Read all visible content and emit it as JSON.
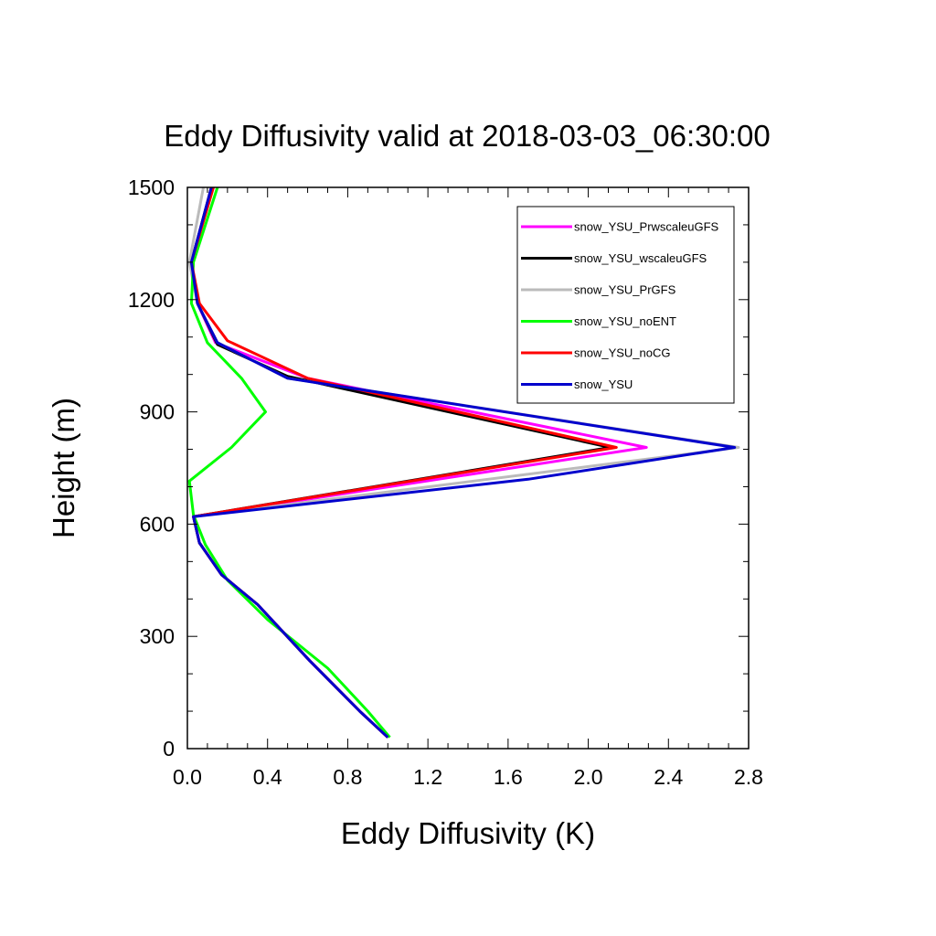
{
  "chart_data": {
    "type": "line",
    "title": "Eddy Diffusivity valid at 2018-03-03_06:30:00",
    "xlabel": "Eddy Diffusivity (K)",
    "ylabel": "Height (m)",
    "xlim": [
      0.0,
      2.8
    ],
    "ylim": [
      0,
      1500
    ],
    "xticks": [
      "0.0",
      "0.4",
      "0.8",
      "1.2",
      "1.6",
      "2.0",
      "2.4",
      "2.8"
    ],
    "yticks": [
      "0",
      "300",
      "600",
      "900",
      "1200",
      "1500"
    ],
    "legend_position": "top-right",
    "grid": false,
    "series": [
      {
        "name": "snow_YSU_PrwscaleuGFS",
        "color": "#ff00ff",
        "points": [
          [
            1.0,
            30
          ],
          [
            0.86,
            100
          ],
          [
            0.61,
            235
          ],
          [
            0.35,
            385
          ],
          [
            0.17,
            465
          ],
          [
            0.06,
            550
          ],
          [
            0.03,
            620
          ],
          [
            2.29,
            805
          ],
          [
            0.6,
            990
          ],
          [
            0.14,
            1085
          ],
          [
            0.05,
            1190
          ],
          [
            0.02,
            1300
          ],
          [
            0.12,
            1500
          ]
        ]
      },
      {
        "name": "snow_YSU_wscaleuGFS",
        "color": "#000000",
        "points": [
          [
            1.0,
            30
          ],
          [
            0.86,
            100
          ],
          [
            0.61,
            235
          ],
          [
            0.35,
            385
          ],
          [
            0.17,
            465
          ],
          [
            0.06,
            550
          ],
          [
            0.03,
            620
          ],
          [
            2.11,
            805
          ],
          [
            0.5,
            995
          ],
          [
            0.15,
            1080
          ],
          [
            0.05,
            1190
          ],
          [
            0.02,
            1300
          ],
          [
            0.12,
            1500
          ]
        ]
      },
      {
        "name": "snow_YSU_PrGFS",
        "color": "#bbbbbb",
        "points": [
          [
            1.0,
            30
          ],
          [
            0.86,
            100
          ],
          [
            0.61,
            235
          ],
          [
            0.35,
            385
          ],
          [
            0.17,
            465
          ],
          [
            0.06,
            550
          ],
          [
            0.03,
            620
          ],
          [
            2.75,
            805
          ],
          [
            0.5,
            990
          ],
          [
            0.15,
            1085
          ],
          [
            0.05,
            1190
          ],
          [
            0.01,
            1300
          ],
          [
            0.08,
            1500
          ]
        ]
      },
      {
        "name": "snow_YSU_noENT",
        "color": "#00ff00",
        "points": [
          [
            1.01,
            30
          ],
          [
            0.9,
            100
          ],
          [
            0.7,
            215
          ],
          [
            0.4,
            345
          ],
          [
            0.2,
            450
          ],
          [
            0.09,
            545
          ],
          [
            0.03,
            625
          ],
          [
            0.01,
            715
          ],
          [
            0.22,
            805
          ],
          [
            0.39,
            900
          ],
          [
            0.27,
            990
          ],
          [
            0.1,
            1085
          ],
          [
            0.02,
            1190
          ],
          [
            0.03,
            1300
          ],
          [
            0.15,
            1500
          ]
        ]
      },
      {
        "name": "snow_YSU_noCG",
        "color": "#ff0000",
        "points": [
          [
            1.0,
            30
          ],
          [
            0.86,
            100
          ],
          [
            0.61,
            235
          ],
          [
            0.35,
            385
          ],
          [
            0.17,
            465
          ],
          [
            0.06,
            550
          ],
          [
            0.03,
            620
          ],
          [
            2.14,
            805
          ],
          [
            0.6,
            990
          ],
          [
            0.2,
            1090
          ],
          [
            0.06,
            1190
          ],
          [
            0.02,
            1300
          ],
          [
            0.13,
            1500
          ]
        ]
      },
      {
        "name": "snow_YSU",
        "color": "#0000cc",
        "points": [
          [
            1.0,
            30
          ],
          [
            0.86,
            100
          ],
          [
            0.61,
            235
          ],
          [
            0.35,
            385
          ],
          [
            0.17,
            465
          ],
          [
            0.06,
            550
          ],
          [
            0.03,
            620
          ],
          [
            1.7,
            720
          ],
          [
            2.73,
            805
          ],
          [
            0.5,
            990
          ],
          [
            0.15,
            1085
          ],
          [
            0.05,
            1190
          ],
          [
            0.02,
            1300
          ],
          [
            0.12,
            1500
          ]
        ]
      }
    ]
  }
}
